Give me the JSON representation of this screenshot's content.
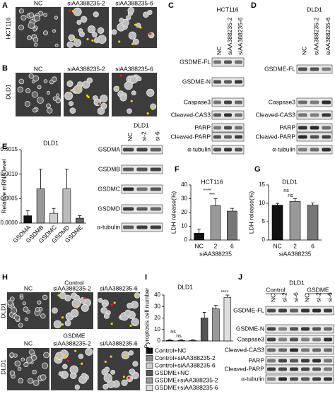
{
  "panels": {
    "A": {
      "letter": "A",
      "row_label": "HCT116",
      "columns": [
        "NC",
        "siAA388235-2",
        "siAA388235-6"
      ]
    },
    "B": {
      "letter": "B",
      "row_label": "DLD1",
      "columns": [
        "NC",
        "siAA388235-2",
        "siAA388235-6"
      ]
    },
    "C": {
      "letter": "C",
      "title": "HCT116",
      "lanes": [
        "NC",
        "siAA388235-2",
        "siAA388235-6"
      ],
      "bands": [
        "GSDME-FL",
        "GSDME-N",
        "Caspase3",
        "Cleaved-CAS3",
        "PARP",
        "Cleaved-PARP",
        "α-tubulin"
      ]
    },
    "D": {
      "letter": "D",
      "title": "DLD1",
      "lanes": [
        "NC",
        "siAA388235-2",
        "siAA388235-6"
      ],
      "bands": [
        "GSDME-FL",
        "Caspase3",
        "Cleaved-CAS3",
        "PARP",
        "Cleaved-PARP",
        "α-tubulin"
      ]
    },
    "E": {
      "letter": "E",
      "blot_title": "DLD1",
      "lanes": [
        "NC",
        "si-2",
        "si-6"
      ],
      "bands": [
        "GSDMA",
        "GSDMB",
        "GSDMC",
        "GSDMD",
        "α-tubulin"
      ]
    },
    "F": {
      "letter": "F"
    },
    "G": {
      "letter": "G"
    },
    "H": {
      "letter": "H",
      "groups": [
        "Control",
        "GSDME"
      ],
      "row_label": "DLD1",
      "columns": [
        "NC",
        "siAA388235-2",
        "siAA388235-6"
      ]
    },
    "I": {
      "letter": "I"
    },
    "J": {
      "letter": "J",
      "title": "DLD1",
      "groups": [
        "Control",
        "GSDME"
      ],
      "lanes": [
        "NC",
        "si-2",
        "si-6",
        "NC",
        "si-2",
        "si-6"
      ],
      "bands": [
        "GSDME-FL",
        "GSDME-N",
        "Caspase3",
        "Cleaved-CAS3",
        "PARP",
        "Cleaved-PARP",
        "α-tubulin"
      ]
    }
  },
  "chart_data": [
    {
      "type": "bar",
      "title": "DLD1",
      "y_label": "Relative mRNA level",
      "categories": [
        "GSDMA",
        "GSDMB",
        "GSDMC",
        "GSDMD",
        "GSDME"
      ],
      "values": [
        0.00015,
        0.0007,
        0.0002,
        0.0007,
        0.0001
      ],
      "errors": [
        0.0001,
        0.0004,
        0.0001,
        0.0004,
        5e-05
      ],
      "colors": [
        "#111111",
        "#999999",
        "#cfcfcf",
        "#bbbbbb",
        "#666666"
      ],
      "ylim": [
        0,
        0.0015
      ],
      "yticks": [
        {
          "value": 0,
          "label": "0.0000"
        },
        {
          "value": 0.0005,
          "label": "0.0005"
        },
        {
          "value": 0.001,
          "label": "0.0010"
        },
        {
          "value": 0.0015,
          "label": "0.0015"
        }
      ]
    },
    {
      "type": "bar",
      "title": "HCT116",
      "y_label": "LDH release(%)",
      "x_label": "siAA388235",
      "categories": [
        "NC",
        "2",
        "6"
      ],
      "values": [
        5,
        25,
        21
      ],
      "errors": [
        3,
        5,
        2
      ],
      "colors": [
        "#111111",
        "#999999",
        "#777777"
      ],
      "annotations": [
        "****",
        "***"
      ],
      "ylim": [
        0,
        40
      ],
      "yticks": [
        0,
        10,
        20,
        30,
        40
      ]
    },
    {
      "type": "bar",
      "title": "DLD1",
      "y_label": "LDH release(%)",
      "x_label": "siAA388235",
      "categories": [
        "NC",
        "2",
        "6"
      ],
      "values": [
        9.5,
        10.5,
        9.5
      ],
      "errors": [
        0.5,
        0.8,
        0.6
      ],
      "colors": [
        "#111111",
        "#999999",
        "#777777"
      ],
      "annotations": [
        "ns",
        "ns"
      ],
      "ylim": [
        0,
        15
      ],
      "yticks": [
        0,
        5,
        10,
        15
      ]
    },
    {
      "type": "bar",
      "title": "DLD1",
      "y_label": "Pyroptosis cell number",
      "legend": true,
      "categories": [
        "Control+NC",
        "Control+siAA388235-2",
        "Control+siAA388235-6",
        "GSDME+NC",
        "GSDME+siAA388235-2",
        "GSDME+siAA388235-6"
      ],
      "values": [
        0.5,
        0.5,
        0.5,
        20,
        28,
        38
      ],
      "errors": [
        0.5,
        0.5,
        0.5,
        5,
        3,
        2
      ],
      "colors": [
        "#111111",
        "#888888",
        "#cccccc",
        "#555555",
        "#999999",
        "#dddddd"
      ],
      "annotations": [
        "ns",
        "ns",
        "*",
        "****"
      ],
      "ylim": [
        0,
        40
      ],
      "yticks": [
        0,
        10,
        20,
        30,
        40
      ]
    }
  ]
}
